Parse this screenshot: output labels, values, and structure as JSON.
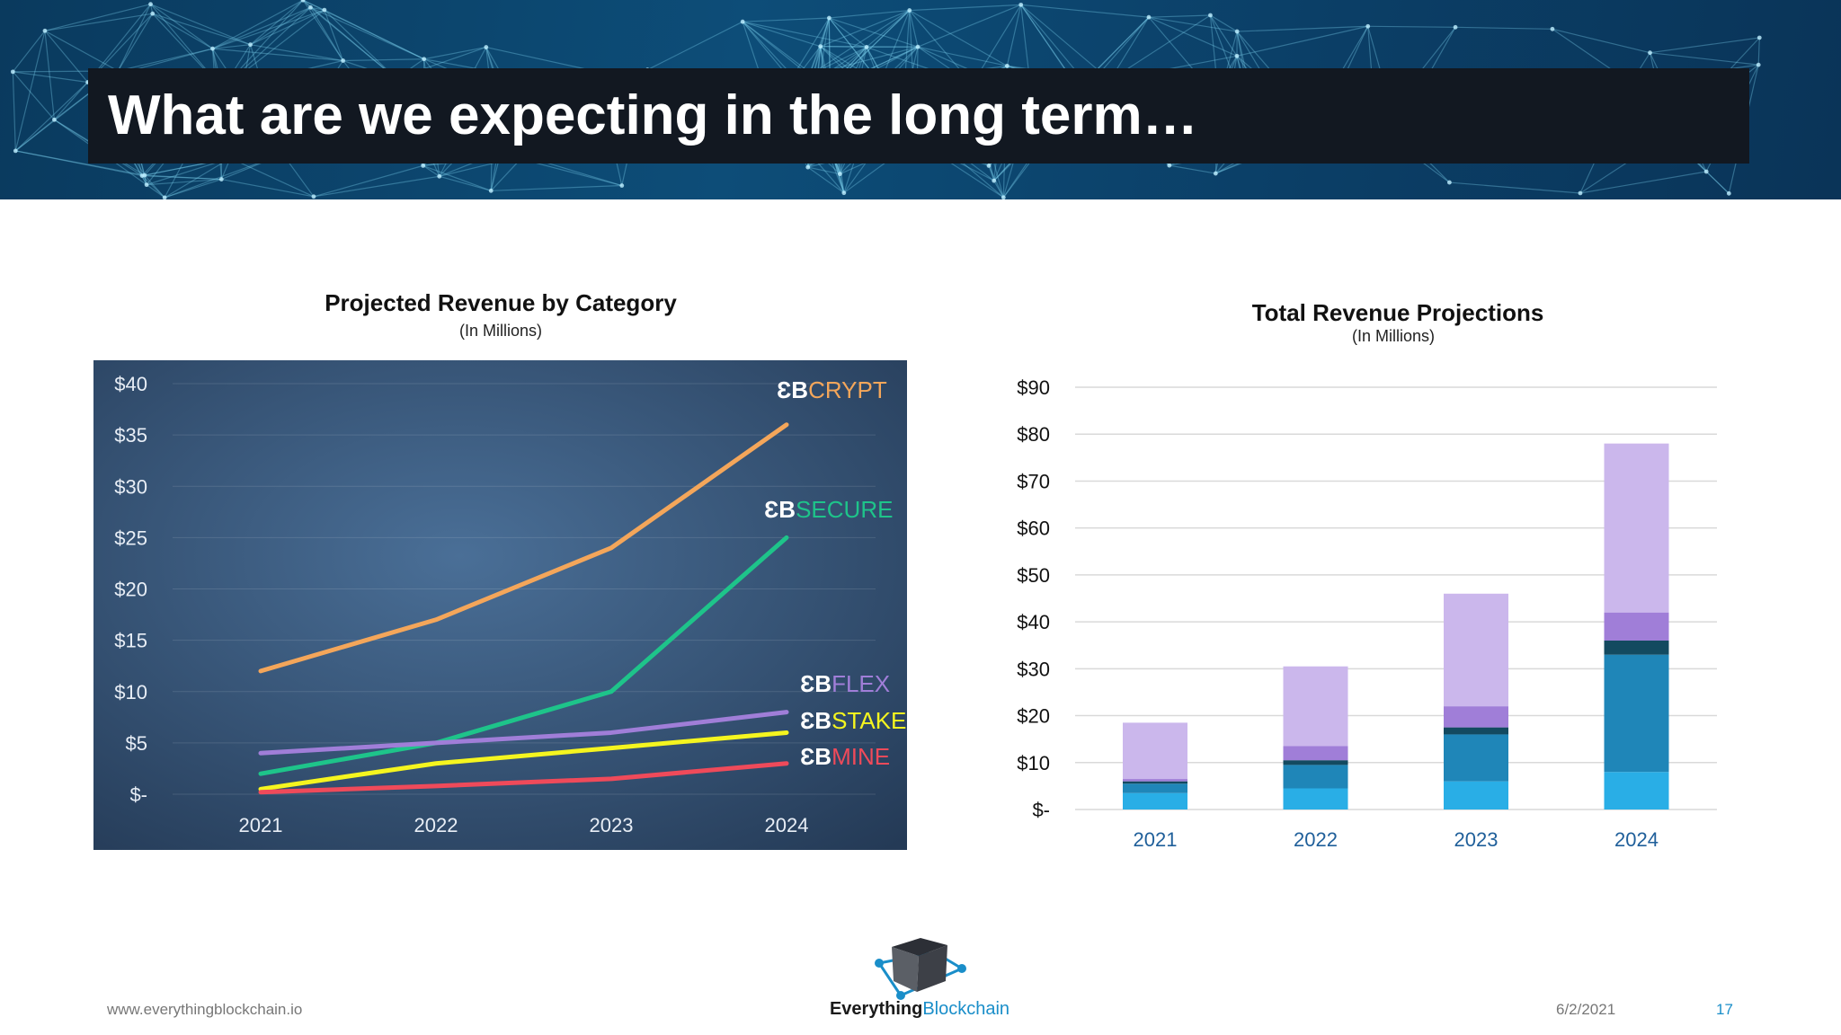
{
  "slide": {
    "title": "What are we expecting in the long term…",
    "footer_url": "www.everythingblockchain.io",
    "date": "6/2/2021",
    "page_number": "17",
    "logo_brand_a": "Everything",
    "logo_brand_b": "Blockchain"
  },
  "chart_data": [
    {
      "type": "line",
      "title": "Projected Revenue by Category",
      "subtitle": "(In Millions)",
      "categories": [
        "2021",
        "2022",
        "2023",
        "2024"
      ],
      "yticks": [
        "$-",
        "$5",
        "$10",
        "$15",
        "$20",
        "$25",
        "$30",
        "$35",
        "$40"
      ],
      "ylim": [
        0,
        40
      ],
      "grid": true,
      "series": [
        {
          "name": "ƐBCRYPT",
          "prefix": "ƐB",
          "label": "CRYPT",
          "color": "#f4a65a",
          "values": [
            12,
            17,
            24,
            36
          ]
        },
        {
          "name": "ƐBSECURE",
          "prefix": "ƐB",
          "label": "SECURE",
          "color": "#1ec48a",
          "values": [
            2,
            5,
            10,
            25
          ]
        },
        {
          "name": "ƐBFLEX",
          "prefix": "ƐB",
          "label": "FLEX",
          "color": "#a07ed8",
          "values": [
            4,
            5,
            6,
            8
          ]
        },
        {
          "name": "ƐBSTAKE",
          "prefix": "ƐB",
          "label": "STAKE",
          "color": "#f5f51f",
          "values": [
            0.5,
            3,
            4.5,
            6
          ]
        },
        {
          "name": "ƐBMINE",
          "prefix": "ƐB",
          "label": "MINE",
          "color": "#ef4a5a",
          "values": [
            0.2,
            0.8,
            1.5,
            3
          ]
        }
      ]
    },
    {
      "type": "bar",
      "stacked": true,
      "title": "Total Revenue Projections",
      "subtitle": "(In Millions)",
      "categories": [
        "2021",
        "2022",
        "2023",
        "2024"
      ],
      "yticks": [
        "$-",
        "$10",
        "$20",
        "$30",
        "$40",
        "$50",
        "$60",
        "$70",
        "$80",
        "$90"
      ],
      "ylim": [
        0,
        90
      ],
      "grid": true,
      "series": [
        {
          "color": "#29aee6",
          "values": [
            3.5,
            4.5,
            6,
            8
          ]
        },
        {
          "color": "#1f86b8",
          "values": [
            2,
            5,
            10,
            25
          ]
        },
        {
          "color": "#134a60",
          "values": [
            0.5,
            1,
            1.5,
            3
          ]
        },
        {
          "color": "#a07ed8",
          "values": [
            0.5,
            3,
            4.5,
            6
          ]
        },
        {
          "color": "#cbb7ec",
          "values": [
            12,
            17,
            24,
            36
          ]
        }
      ]
    }
  ]
}
